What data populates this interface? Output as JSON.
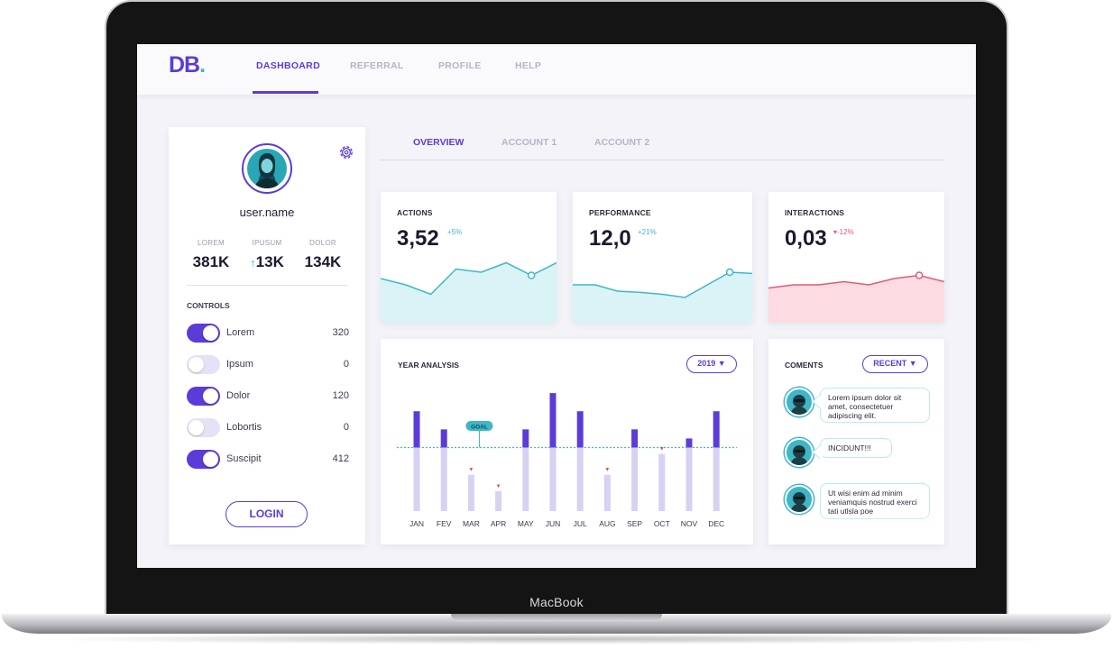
{
  "device": {
    "brand_label": "MacBook"
  },
  "app": {
    "logo_text": "DB",
    "logo_dot": ".",
    "nav": [
      {
        "label": "DASHBOARD",
        "active": true
      },
      {
        "label": "REFERRAL",
        "active": false
      },
      {
        "label": "PROFILE",
        "active": false
      },
      {
        "label": "HELP",
        "active": false
      }
    ]
  },
  "profile": {
    "username": "user.name",
    "stats": [
      {
        "label": "LOREM",
        "value": "381K",
        "trend": ""
      },
      {
        "label": "IPUSUM",
        "value": "13K",
        "trend": "↑"
      },
      {
        "label": "DOLOR",
        "value": "134K",
        "trend": ""
      }
    ],
    "controls_title": "CONTROLS",
    "controls": [
      {
        "label": "Lorem",
        "value": "320",
        "on": true
      },
      {
        "label": "Ipsum",
        "value": "0",
        "on": false
      },
      {
        "label": "Dolor",
        "value": "120",
        "on": true
      },
      {
        "label": "Lobortis",
        "value": "0",
        "on": false
      },
      {
        "label": "Suscipit",
        "value": "412",
        "on": true
      }
    ],
    "login_label": "LOGIN"
  },
  "account_tabs": [
    {
      "label": "OVERVIEW",
      "active": true
    },
    {
      "label": "ACCOUNT 1",
      "active": false
    },
    {
      "label": "ACCOUNT 2",
      "active": false
    }
  ],
  "metrics": [
    {
      "title": "ACTIONS",
      "value": "3,52",
      "delta": "+5%",
      "direction": "up",
      "color": "#3fb6c8",
      "fill": "#d9f3f6"
    },
    {
      "title": "PERFORMANCE",
      "value": "12,0",
      "delta": "+21%",
      "direction": "up",
      "color": "#3fb6c8",
      "fill": "#d9f3f6"
    },
    {
      "title": "INTERACTIONS",
      "value": "0,03",
      "delta": "-12%",
      "direction": "down",
      "color": "#e05a78",
      "fill": "#fcdbe2"
    }
  ],
  "metric_trends": [
    [
      0.7,
      0.6,
      0.45,
      0.85,
      0.8,
      0.95,
      0.75,
      0.95
    ],
    [
      0.6,
      0.6,
      0.5,
      0.48,
      0.45,
      0.4,
      0.6,
      0.8,
      0.78
    ],
    [
      0.55,
      0.6,
      0.6,
      0.65,
      0.6,
      0.7,
      0.75,
      0.65
    ]
  ],
  "year_analysis": {
    "title": "YEAR ANALYSIS",
    "year_selector": "2019 ▼",
    "goal_label": "GOAL"
  },
  "chart_data": {
    "type": "bar",
    "categories": [
      "JAN",
      "FEV",
      "MAR",
      "APR",
      "MAY",
      "JUN",
      "JUL",
      "AUG",
      "SEP",
      "OCT",
      "NOV",
      "DEC"
    ],
    "values": [
      110,
      90,
      40,
      22,
      90,
      130,
      110,
      40,
      90,
      63,
      80,
      110
    ],
    "goal": 70,
    "below_goal_marker": "▼",
    "colors": {
      "above": "#5b3cd8",
      "below": "#d7d1f3",
      "goal": "#3fb6c8",
      "marker": "#e0405a"
    },
    "ylim": [
      0,
      140
    ]
  },
  "comments": {
    "title": "COMENTS",
    "filter": "RECENT ▼",
    "items": [
      {
        "text": "Lorem ipsum dolor sit amet, consectetuer adipiscing elit."
      },
      {
        "text": "INCIDUNT!!!"
      },
      {
        "text": "Ut wisi enim ad minim veniamquis nostrud exerci tati utlsla poe"
      }
    ]
  }
}
